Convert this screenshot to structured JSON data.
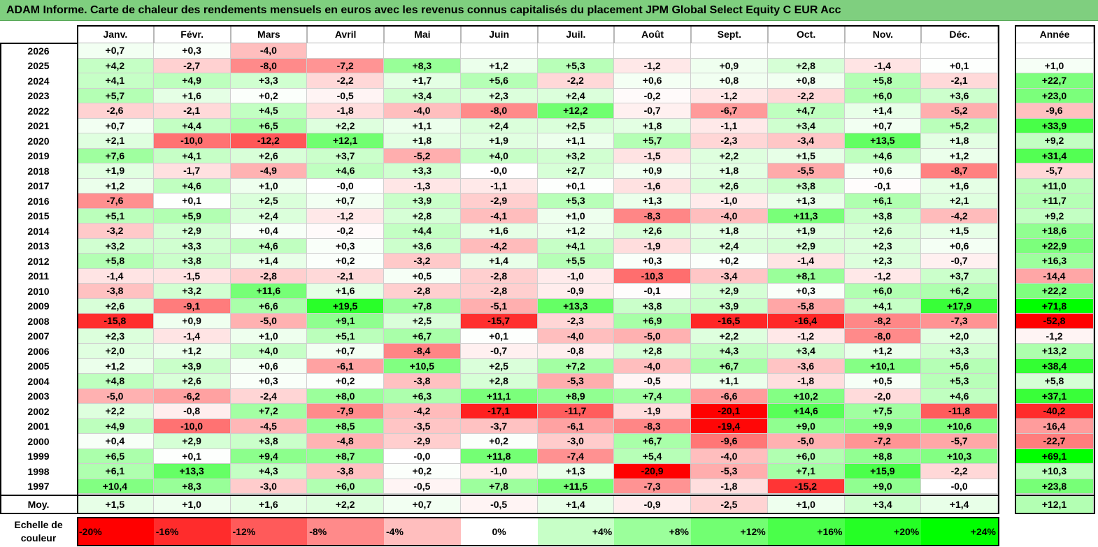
{
  "title": "ADAM Informe. Carte de chaleur des rendements mensuels en euros avec les revenus connus capitalisés du placement JPM Global Select Equity C EUR Acc",
  "months": [
    "Janv.",
    "Févr.",
    "Mars",
    "Avril",
    "Mai",
    "Juin",
    "Juil.",
    "Août",
    "Sept.",
    "Oct.",
    "Nov.",
    "Déc."
  ],
  "year_header": "Année",
  "avg_label": "Moy.",
  "scale_label": "Echelle de couleur",
  "colors": {
    "negative_max": "#ff0000",
    "neutral": "#ffffff",
    "positive_max": "#00ff00",
    "title_bg": "#7fcf7f"
  },
  "chart_data": {
    "type": "heatmap",
    "title": "ADAM Informe. Carte de chaleur des rendements mensuels en euros avec les revenus connus capitalisés du placement JPM Global Select Equity C EUR Acc",
    "columns": [
      "Janv.",
      "Févr.",
      "Mars",
      "Avril",
      "Mai",
      "Juin",
      "Juil.",
      "Août",
      "Sept.",
      "Oct.",
      "Nov.",
      "Déc.",
      "Année"
    ],
    "rows": [
      {
        "year": "2026",
        "values": [
          "+0,7",
          "+0,3",
          "-4,0",
          "",
          "",
          "",
          "",
          "",
          "",
          "",
          "",
          "",
          ""
        ]
      },
      {
        "year": "2025",
        "values": [
          "+4,2",
          "-2,7",
          "-8,0",
          "-7,2",
          "+8,3",
          "+1,2",
          "+5,3",
          "-1,2",
          "+0,9",
          "+2,8",
          "-1,4",
          "+0,1",
          "+1,0"
        ]
      },
      {
        "year": "2024",
        "values": [
          "+4,1",
          "+4,9",
          "+3,3",
          "-2,2",
          "+1,7",
          "+5,6",
          "-2,2",
          "+0,6",
          "+0,8",
          "+0,8",
          "+5,8",
          "-2,1",
          "+22,7"
        ]
      },
      {
        "year": "2023",
        "values": [
          "+5,7",
          "+1,6",
          "+0,2",
          "-0,5",
          "+3,4",
          "+2,3",
          "+2,4",
          "-0,2",
          "-1,2",
          "-2,2",
          "+6,0",
          "+3,6",
          "+23,0"
        ]
      },
      {
        "year": "2022",
        "values": [
          "-2,6",
          "-2,1",
          "+4,5",
          "-1,8",
          "-4,0",
          "-8,0",
          "+12,2",
          "-0,7",
          "-6,7",
          "+4,7",
          "+1,4",
          "-5,2",
          "-9,6"
        ]
      },
      {
        "year": "2021",
        "values": [
          "+0,7",
          "+4,4",
          "+6,5",
          "+2,2",
          "+1,1",
          "+2,4",
          "+2,5",
          "+1,8",
          "-1,1",
          "+3,4",
          "+0,7",
          "+5,2",
          "+33,9"
        ]
      },
      {
        "year": "2020",
        "values": [
          "+2,1",
          "-10,0",
          "-12,2",
          "+12,1",
          "+1,8",
          "+1,9",
          "+1,1",
          "+5,7",
          "-2,3",
          "-3,4",
          "+13,5",
          "+1,8",
          "+9,2"
        ]
      },
      {
        "year": "2019",
        "values": [
          "+7,6",
          "+4,1",
          "+2,6",
          "+3,7",
          "-5,2",
          "+4,0",
          "+3,2",
          "-1,5",
          "+2,2",
          "+1,5",
          "+4,6",
          "+1,2",
          "+31,4"
        ]
      },
      {
        "year": "2018",
        "values": [
          "+1,9",
          "-1,7",
          "-4,9",
          "+4,6",
          "+3,3",
          "-0,0",
          "+2,7",
          "+0,9",
          "+1,8",
          "-5,5",
          "+0,6",
          "-8,7",
          "-5,7"
        ]
      },
      {
        "year": "2017",
        "values": [
          "+1,2",
          "+4,6",
          "+1,0",
          "-0,0",
          "-1,3",
          "-1,1",
          "+0,1",
          "-1,6",
          "+2,6",
          "+3,8",
          "-0,1",
          "+1,6",
          "+11,0"
        ]
      },
      {
        "year": "2016",
        "values": [
          "-7,6",
          "+0,1",
          "+2,5",
          "+0,7",
          "+3,9",
          "-2,9",
          "+5,3",
          "+1,3",
          "-1,0",
          "+1,3",
          "+6,1",
          "+2,1",
          "+11,7"
        ]
      },
      {
        "year": "2015",
        "values": [
          "+5,1",
          "+5,9",
          "+2,4",
          "-1,2",
          "+2,8",
          "-4,1",
          "+1,0",
          "-8,3",
          "-4,0",
          "+11,3",
          "+3,8",
          "-4,2",
          "+9,2"
        ]
      },
      {
        "year": "2014",
        "values": [
          "-3,2",
          "+2,9",
          "+0,4",
          "-0,2",
          "+4,4",
          "+1,6",
          "+1,2",
          "+2,6",
          "+1,8",
          "+1,9",
          "+2,6",
          "+1,5",
          "+18,6"
        ]
      },
      {
        "year": "2013",
        "values": [
          "+3,2",
          "+3,3",
          "+4,6",
          "+0,3",
          "+3,6",
          "-4,2",
          "+4,1",
          "-1,9",
          "+2,4",
          "+2,9",
          "+2,3",
          "+0,6",
          "+22,9"
        ]
      },
      {
        "year": "2012",
        "values": [
          "+5,8",
          "+3,8",
          "+1,4",
          "+0,2",
          "-3,2",
          "+1,4",
          "+5,5",
          "+0,3",
          "+0,2",
          "-1,4",
          "+2,3",
          "-0,7",
          "+16,3"
        ]
      },
      {
        "year": "2011",
        "values": [
          "-1,4",
          "-1,5",
          "-2,8",
          "-2,1",
          "+0,5",
          "-2,8",
          "-1,0",
          "-10,3",
          "-3,4",
          "+8,1",
          "-1,2",
          "+3,7",
          "-14,4"
        ]
      },
      {
        "year": "2010",
        "values": [
          "-3,8",
          "+3,2",
          "+11,6",
          "+1,6",
          "-2,8",
          "-2,8",
          "-0,9",
          "-0,1",
          "+2,9",
          "+0,3",
          "+6,0",
          "+6,2",
          "+22,2"
        ]
      },
      {
        "year": "2009",
        "values": [
          "+2,6",
          "-9,1",
          "+6,6",
          "+19,5",
          "+7,8",
          "-5,1",
          "+13,3",
          "+3,8",
          "+3,9",
          "-5,8",
          "+4,1",
          "+17,9",
          "+71,8"
        ]
      },
      {
        "year": "2008",
        "values": [
          "-15,8",
          "+0,9",
          "-5,0",
          "+9,1",
          "+2,5",
          "-15,7",
          "-2,3",
          "+6,9",
          "-16,5",
          "-16,4",
          "-8,2",
          "-7,3",
          "-52,8"
        ]
      },
      {
        "year": "2007",
        "values": [
          "+2,3",
          "-1,4",
          "+1,0",
          "+5,1",
          "+6,7",
          "+0,1",
          "-4,0",
          "-5,0",
          "+2,2",
          "-1,2",
          "-8,0",
          "+2,0",
          "-1,2"
        ]
      },
      {
        "year": "2006",
        "values": [
          "+2,0",
          "+1,2",
          "+4,0",
          "+0,7",
          "-8,4",
          "-0,7",
          "-0,8",
          "+2,8",
          "+4,3",
          "+3,4",
          "+1,2",
          "+3,3",
          "+13,2"
        ]
      },
      {
        "year": "2005",
        "values": [
          "+1,2",
          "+3,9",
          "+0,6",
          "-6,1",
          "+10,5",
          "+2,5",
          "+7,2",
          "-4,0",
          "+6,7",
          "-3,6",
          "+10,1",
          "+5,6",
          "+38,4"
        ]
      },
      {
        "year": "2004",
        "values": [
          "+4,8",
          "+2,6",
          "+0,3",
          "+0,2",
          "-3,8",
          "+2,8",
          "-5,3",
          "-0,5",
          "+1,1",
          "-1,8",
          "+0,5",
          "+5,3",
          "+5,8"
        ]
      },
      {
        "year": "2003",
        "values": [
          "-5,0",
          "-6,2",
          "-2,4",
          "+8,0",
          "+6,3",
          "+11,1",
          "+8,9",
          "+7,4",
          "-6,6",
          "+10,2",
          "-2,0",
          "+4,6",
          "+37,1"
        ]
      },
      {
        "year": "2002",
        "values": [
          "+2,2",
          "-0,8",
          "+7,2",
          "-7,9",
          "-4,2",
          "-17,1",
          "-11,7",
          "-1,9",
          "-20,1",
          "+14,6",
          "+7,5",
          "-11,8",
          "-40,2"
        ]
      },
      {
        "year": "2001",
        "values": [
          "+4,9",
          "-10,0",
          "-4,5",
          "+8,5",
          "-3,5",
          "-3,7",
          "-6,1",
          "-8,3",
          "-19,4",
          "+9,0",
          "+9,9",
          "+10,6",
          "-16,4"
        ]
      },
      {
        "year": "2000",
        "values": [
          "+0,4",
          "+2,9",
          "+3,8",
          "-4,8",
          "-2,9",
          "+0,2",
          "-3,0",
          "+6,7",
          "-9,6",
          "-5,0",
          "-7,2",
          "-5,7",
          "-22,7"
        ]
      },
      {
        "year": "1999",
        "values": [
          "+6,5",
          "+0,1",
          "+9,4",
          "+8,7",
          "-0,0",
          "+11,8",
          "-7,4",
          "+5,4",
          "-4,0",
          "+6,0",
          "+8,8",
          "+10,3",
          "+69,1"
        ]
      },
      {
        "year": "1998",
        "values": [
          "+6,1",
          "+13,3",
          "+4,3",
          "-3,8",
          "+0,2",
          "-1,0",
          "+1,3",
          "-20,9",
          "-5,3",
          "+7,1",
          "+15,9",
          "-2,2",
          "+10,3"
        ]
      },
      {
        "year": "1997",
        "values": [
          "+10,4",
          "+8,3",
          "-3,0",
          "+6,0",
          "-0,5",
          "+7,8",
          "+11,5",
          "-7,3",
          "-1,8",
          "-15,2",
          "+9,0",
          "-0,0",
          "+23,8"
        ]
      }
    ],
    "average": [
      "+1,5",
      "+1,0",
      "+1,6",
      "+2,2",
      "+0,7",
      "-0,5",
      "+1,4",
      "-0,9",
      "-2,5",
      "+1,0",
      "+3,4",
      "+1,4",
      "+12,1"
    ],
    "monthly_scale_range": [
      -20,
      24
    ],
    "annual_scale_range": [
      -50,
      50
    ],
    "scale": [
      "-20%",
      "-16%",
      "-12%",
      "-8%",
      "-4%",
      "0%",
      "+4%",
      "+8%",
      "+12%",
      "+16%",
      "+20%",
      "+24%"
    ]
  }
}
